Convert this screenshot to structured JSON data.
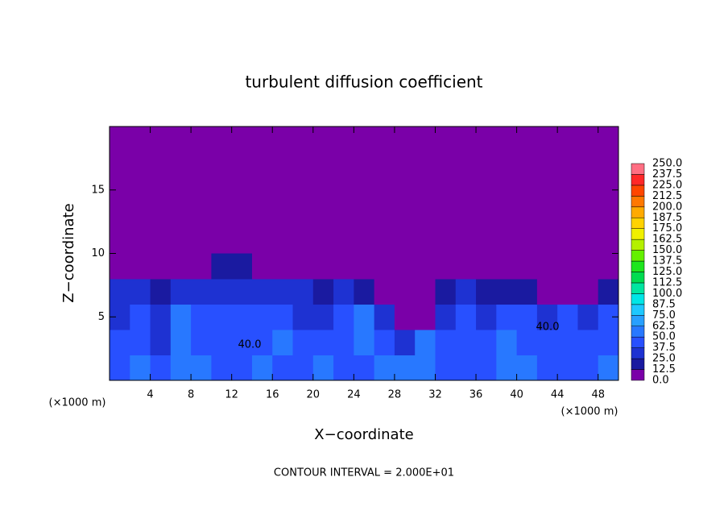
{
  "chart_data": {
    "type": "heatmap",
    "title": "turbulent diffusion coefficient",
    "x_label": "X−coordinate",
    "y_label": "Z−coordinate",
    "x_unit": "(×1000 m)",
    "y_unit": "(×1000 m)",
    "footer": "CONTOUR INTERVAL = 2.000E+01",
    "annotations": [
      "40.0",
      "40.0"
    ],
    "xlim": [
      0,
      50
    ],
    "ylim": [
      0,
      20
    ],
    "xticks": [
      4,
      8,
      12,
      16,
      20,
      24,
      28,
      32,
      36,
      40,
      44,
      48
    ],
    "yticks": [
      5,
      10,
      15
    ],
    "x": [
      1,
      3,
      5,
      7,
      9,
      11,
      13,
      15,
      17,
      19,
      21,
      23,
      25,
      27,
      29,
      31,
      33,
      35,
      37,
      39,
      41,
      43,
      45,
      47,
      49
    ],
    "y": [
      1,
      3,
      5,
      7,
      9
    ],
    "values": [
      [
        45,
        55,
        40,
        60,
        50,
        45,
        40,
        55,
        45,
        40,
        50,
        40,
        45,
        50,
        55,
        50,
        45,
        40,
        45,
        50,
        55,
        45,
        40,
        45,
        50
      ],
      [
        40,
        45,
        35,
        55,
        45,
        40,
        45,
        40,
        50,
        45,
        40,
        45,
        55,
        40,
        30,
        50,
        45,
        40,
        45,
        50,
        45,
        40,
        45,
        40,
        45
      ],
      [
        35,
        40,
        30,
        50,
        40,
        40,
        45,
        40,
        45,
        35,
        35,
        40,
        50,
        35,
        5,
        10,
        35,
        40,
        35,
        45,
        40,
        35,
        40,
        35,
        40
      ],
      [
        25,
        25,
        20,
        30,
        35,
        30,
        35,
        30,
        35,
        25,
        20,
        25,
        15,
        5,
        0,
        0,
        15,
        25,
        20,
        20,
        15,
        10,
        5,
        5,
        15
      ],
      [
        0,
        0,
        0,
        5,
        10,
        20,
        15,
        0,
        0,
        0,
        0,
        0,
        0,
        0,
        0,
        0,
        0,
        0,
        0,
        0,
        0,
        0,
        0,
        0,
        0
      ]
    ],
    "colorbar": {
      "levels": [
        {
          "value": 0,
          "label": "0.0"
        },
        12.5,
        {
          "value": 25,
          "label": "25.0"
        },
        37.5,
        {
          "value": 50,
          "label": "50.0"
        },
        62.5,
        {
          "value": 75,
          "label": "75.0"
        },
        87.5,
        {
          "value": 100,
          "label": "100.0"
        },
        112.5,
        {
          "value": 125,
          "label": "125.0"
        },
        137.5,
        {
          "value": 150,
          "label": "150.0"
        },
        162.5,
        {
          "value": 175,
          "label": "175.0"
        },
        187.5,
        {
          "value": 200,
          "label": "200.0"
        },
        212.5,
        {
          "value": 225,
          "label": "225.0"
        },
        237.5,
        {
          "value": 250,
          "label": "250.0"
        }
      ],
      "colors": [
        "#7a00a8",
        "#1a1aa0",
        "#1e32d2",
        "#2850ff",
        "#2878ff",
        "#28a0ff",
        "#1ec8ff",
        "#00e6e6",
        "#00e6a0",
        "#00dc50",
        "#1ee61e",
        "#64f000",
        "#b4f000",
        "#f0f000",
        "#ffd200",
        "#ffaa00",
        "#ff7800",
        "#ff4600",
        "#ff2828",
        "#ff6e82"
      ]
    }
  }
}
